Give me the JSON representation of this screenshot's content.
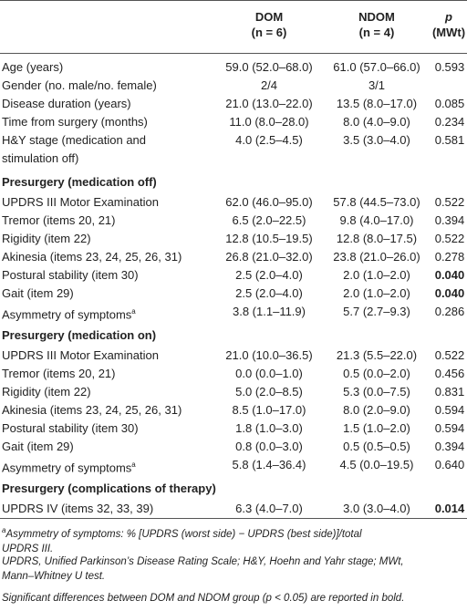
{
  "header": {
    "dom": "DOM",
    "dom_n": "(n = 6)",
    "ndom": "NDOM",
    "ndom_n": "(n = 4)",
    "p": "p",
    "p_test": "(MWt)"
  },
  "demographics": [
    {
      "label": "Age (years)",
      "dom": "59.0 (52.0–68.0)",
      "ndom": "61.0 (57.0–66.0)",
      "p": "0.593"
    },
    {
      "label": "Gender (no. male/no. female)",
      "dom": "2/4",
      "ndom": "3/1",
      "p": ""
    },
    {
      "label": "Disease duration (years)",
      "dom": "21.0 (13.0–22.0)",
      "ndom": "13.5 (8.0–17.0)",
      "p": "0.085"
    },
    {
      "label": "Time from surgery (months)",
      "dom": "11.0 (8.0–28.0)",
      "ndom": "8.0 (4.0–9.0)",
      "p": "0.234"
    },
    {
      "label": "H&Y stage (medication and",
      "label2": "stimulation off)",
      "dom": "4.0 (2.5–4.5)",
      "ndom": "3.5 (3.0–4.0)",
      "p": "0.581"
    }
  ],
  "sections": [
    {
      "title": "Presurgery (medication off)",
      "rows": [
        {
          "label": "UPDRS III Motor Examination",
          "dom": "62.0 (46.0–95.0)",
          "ndom": "57.8 (44.5–73.0)",
          "p": "0.522"
        },
        {
          "label": "Tremor (items 20, 21)",
          "dom": "6.5 (2.0–22.5)",
          "ndom": "9.8 (4.0–17.0)",
          "p": "0.394"
        },
        {
          "label": "Rigidity (item 22)",
          "dom": "12.8 (10.5–19.5)",
          "ndom": "12.8 (8.0–17.5)",
          "p": "0.522"
        },
        {
          "label": "Akinesia (items 23, 24, 25, 26, 31)",
          "dom": "26.8 (21.0–32.0)",
          "ndom": "23.8 (21.0–26.0)",
          "p": "0.278"
        },
        {
          "label": "Postural stability (item 30)",
          "dom": "2.5 (2.0–4.0)",
          "ndom": "2.0 (1.0–2.0)",
          "p": "0.040"
        },
        {
          "label": "Gait (item 29)",
          "dom": "2.5 (2.0–4.0)",
          "ndom": "2.0 (1.0–2.0)",
          "p": "0.040"
        },
        {
          "label": "Asymmetry of symptoms",
          "sup": "a",
          "dom": "3.8 (1.1–11.9)",
          "ndom": "5.7 (2.7–9.3)",
          "p": "0.286"
        }
      ]
    },
    {
      "title": "Presurgery (medication on)",
      "rows": [
        {
          "label": "UPDRS III Motor Examination",
          "dom": "21.0 (10.0–36.5)",
          "ndom": "21.3 (5.5–22.0)",
          "p": "0.522"
        },
        {
          "label": "Tremor (items 20, 21)",
          "dom": "0.0 (0.0–1.0)",
          "ndom": "0.5 (0.0–2.0)",
          "p": "0.456"
        },
        {
          "label": "Rigidity (item 22)",
          "dom": "5.0 (2.0–8.5)",
          "ndom": "5.3 (0.0–7.5)",
          "p": "0.831"
        },
        {
          "label": "Akinesia (items 23, 24, 25, 26, 31)",
          "dom": "8.5 (1.0–17.0)",
          "ndom": "8.0 (2.0–9.0)",
          "p": "0.594"
        },
        {
          "label": "Postural stability (item 30)",
          "dom": "1.8 (1.0–3.0)",
          "ndom": "1.5 (1.0–2.0)",
          "p": "0.594"
        },
        {
          "label": "Gait (item 29)",
          "dom": "0.8 (0.0–3.0)",
          "ndom": "0.5 (0.5–0.5)",
          "p": "0.394"
        },
        {
          "label": "Asymmetry of symptoms",
          "sup": "a",
          "dom": "5.8 (1.4–36.4)",
          "ndom": "4.5 (0.0–19.5)",
          "p": "0.640"
        }
      ]
    },
    {
      "title": "Presurgery (complications of therapy)",
      "rows": [
        {
          "label": "UPDRS IV (items 32, 33, 39)",
          "dom": "6.3 (4.0–7.0)",
          "ndom": "3.0 (3.0–4.0)",
          "p": "0.014"
        }
      ]
    }
  ],
  "footnotes": {
    "a_sup": "a",
    "a_line1": "Asymmetry of symptoms: % [UPDRS (worst side) − UPDRS (best side)]/total",
    "a_line2": "UPDRS III.",
    "abbr_line1": "UPDRS, Unified Parkinson’s Disease Rating Scale; H&Y, Hoehn and Yahr stage; MWt,",
    "abbr_line2": "Mann–Whitney U test.",
    "sig_line": "Significant differences between DOM and NDOM group (p < 0.05) are reported in bold."
  }
}
